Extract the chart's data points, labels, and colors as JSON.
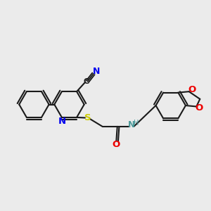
{
  "background_color": "#ebebeb",
  "bond_color": "#1a1a1a",
  "atom_colors": {
    "N_blue": "#0000ee",
    "O": "#ee0000",
    "S": "#cccc00",
    "NH": "#4a9999"
  },
  "figsize": [
    3.0,
    3.0
  ],
  "dpi": 100,
  "xlim": [
    0,
    10
  ],
  "ylim": [
    0,
    10
  ]
}
